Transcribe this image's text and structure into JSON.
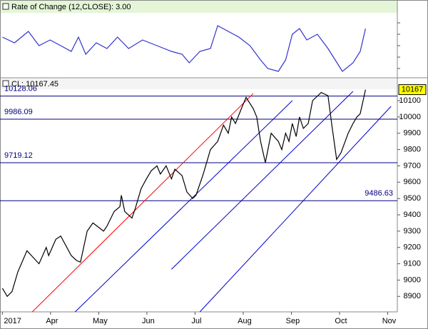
{
  "chart_data": [
    {
      "type": "line",
      "title": "Rate of Change (12,CLOSE): 3.00",
      "series": [
        {
          "name": "Rate of Change",
          "color": "#3333cc",
          "x": [
            0.0,
            0.25,
            0.54,
            0.76,
            0.99,
            1.21,
            1.43,
            1.58,
            1.73,
            1.95,
            2.17,
            2.39,
            2.62,
            2.91,
            3.21,
            3.51,
            3.73,
            3.88,
            4.1,
            4.32,
            4.47,
            4.69,
            4.91,
            5.14,
            5.36,
            5.51,
            5.73,
            5.88,
            6.02,
            6.17,
            6.32,
            6.54,
            6.76,
            6.91,
            7.06,
            7.28,
            7.43,
            7.54
          ],
          "values": [
            1.5,
            0.5,
            2.5,
            0,
            1,
            0,
            -1,
            1.5,
            -1.5,
            0.5,
            -0.5,
            1.5,
            -0.5,
            1,
            0,
            -1,
            -1.5,
            -3,
            -1,
            -0.5,
            3.5,
            2.5,
            1.5,
            0,
            -2.5,
            -4,
            -4.5,
            -2.5,
            2,
            3,
            1,
            2,
            -0.5,
            -2.5,
            -4.5,
            -3,
            -1,
            3
          ]
        }
      ],
      "xlim": [
        -0.05,
        8.2
      ],
      "ylim": [
        -5.5,
        5.5
      ],
      "yticks": [
        -4,
        -2,
        0,
        2,
        4
      ]
    },
    {
      "type": "line",
      "title": "CL: 10167.45",
      "last_label": "10167",
      "series": [
        {
          "name": "CL",
          "color": "#000000",
          "x": [
            0.0,
            0.1,
            0.2,
            0.32,
            0.51,
            0.76,
            0.91,
            0.96,
            1.11,
            1.21,
            1.43,
            1.54,
            1.62,
            1.76,
            1.88,
            2.1,
            2.17,
            2.32,
            2.44,
            2.47,
            2.54,
            2.69,
            2.76,
            2.88,
            2.99,
            3.09,
            3.21,
            3.28,
            3.4,
            3.51,
            3.58,
            3.73,
            3.83,
            3.95,
            4.02,
            4.17,
            4.32,
            4.47,
            4.59,
            4.69,
            4.76,
            4.84,
            4.96,
            5.06,
            5.21,
            5.28,
            5.36,
            5.46,
            5.58,
            5.73,
            5.8,
            5.88,
            5.95,
            6.02,
            6.1,
            6.17,
            6.25,
            6.35,
            6.44,
            6.62,
            6.76,
            6.84,
            6.94,
            7.03,
            7.18,
            7.28,
            7.36,
            7.43,
            7.54
          ],
          "values": [
            8950,
            8900,
            8930,
            9050,
            9180,
            9100,
            9200,
            9150,
            9250,
            9270,
            9150,
            9120,
            9110,
            9300,
            9350,
            9300,
            9330,
            9420,
            9450,
            9520,
            9420,
            9380,
            9440,
            9560,
            9620,
            9670,
            9700,
            9650,
            9700,
            9620,
            9680,
            9640,
            9540,
            9500,
            9520,
            9650,
            9800,
            9850,
            9950,
            9900,
            10000,
            9960,
            10050,
            10120,
            10050,
            10000,
            9850,
            9720,
            9900,
            9850,
            9800,
            9900,
            9850,
            9960,
            9880,
            10000,
            9930,
            9960,
            10100,
            10150,
            10130,
            9950,
            9740,
            9780,
            9900,
            9960,
            10000,
            10020,
            10167.45
          ]
        }
      ],
      "levels": [
        10128.06,
        9986.09,
        9719.12,
        9486.63
      ],
      "level_color": "#000080",
      "trendlines": [
        {
          "color": "#ff0000",
          "x": [
            0.62,
            5.21
          ],
          "y": [
            8805,
            10144
          ]
        },
        {
          "color": "#0000cc",
          "x": [
            1.51,
            6.02
          ],
          "y": [
            8805,
            10100
          ]
        },
        {
          "color": "#0000cc",
          "x": [
            3.51,
            7.28
          ],
          "y": [
            9066,
            10157
          ]
        },
        {
          "color": "#0000cc",
          "x": [
            4.1,
            8.07
          ],
          "y": [
            8805,
            10065
          ]
        }
      ],
      "xlim": [
        -0.05,
        8.2
      ],
      "ylim": [
        8805,
        10170
      ],
      "yticks": [
        8900,
        9000,
        9100,
        9200,
        9300,
        9400,
        9500,
        9600,
        9700,
        9800,
        9900,
        10000,
        10100
      ],
      "xticks": [
        {
          "value": 0,
          "label": "2017"
        },
        {
          "value": 1,
          "label": "Apr"
        },
        {
          "value": 2,
          "label": "May"
        },
        {
          "value": 3,
          "label": "Jun"
        },
        {
          "value": 4,
          "label": "Jul"
        },
        {
          "value": 5,
          "label": "Aug"
        },
        {
          "value": 6,
          "label": "Sep"
        },
        {
          "value": 7,
          "label": "Oct"
        },
        {
          "value": 8,
          "label": "Nov"
        }
      ]
    }
  ]
}
